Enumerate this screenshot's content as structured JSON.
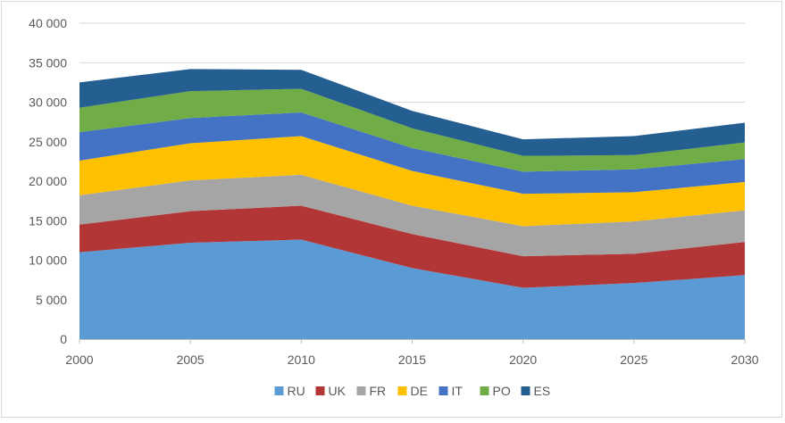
{
  "chart_data": {
    "type": "area",
    "stacked": true,
    "title": "",
    "xlabel": "",
    "ylabel": "",
    "x": [
      2000,
      2005,
      2010,
      2015,
      2020,
      2025,
      2030
    ],
    "ylim": [
      0,
      40000
    ],
    "yticks": [
      0,
      5000,
      10000,
      15000,
      20000,
      25000,
      30000,
      35000,
      40000
    ],
    "ytick_labels": [
      "0",
      "5 000",
      "10 000",
      "15 000",
      "20 000",
      "25 000",
      "30 000",
      "35 000",
      "40 000"
    ],
    "grid": true,
    "legend_position": "bottom",
    "series": [
      {
        "name": "RU",
        "color": "#5b9bd5",
        "values": [
          11000,
          12200,
          12600,
          9000,
          6500,
          7100,
          8100
        ]
      },
      {
        "name": "UK",
        "color": "#b33636",
        "values": [
          3500,
          4000,
          4300,
          4300,
          4000,
          3700,
          4200
        ]
      },
      {
        "name": "FR",
        "color": "#a5a5a5",
        "values": [
          3700,
          3900,
          3900,
          3600,
          3800,
          4100,
          4000
        ]
      },
      {
        "name": "DE",
        "color": "#ffc000",
        "values": [
          4400,
          4700,
          4900,
          4400,
          4100,
          3700,
          3600
        ]
      },
      {
        "name": "IT",
        "color": "#4472c4",
        "values": [
          3600,
          3200,
          3000,
          2900,
          2800,
          2900,
          2900
        ]
      },
      {
        "name": "PO",
        "color": "#70ad47",
        "values": [
          3100,
          3400,
          3000,
          2500,
          2000,
          1800,
          2100
        ]
      },
      {
        "name": "ES",
        "color": "#255e91",
        "values": [
          3200,
          2800,
          2400,
          2200,
          2100,
          2400,
          2500
        ]
      }
    ]
  }
}
